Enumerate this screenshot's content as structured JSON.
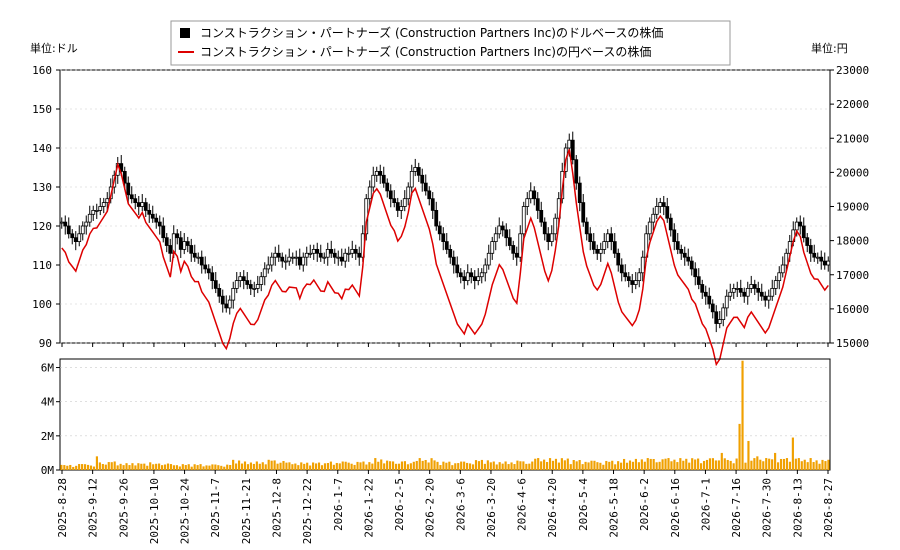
{
  "chart_data": {
    "type": "candlestick-line-bar",
    "legend": {
      "placement": "top-center",
      "entries": [
        {
          "label": "コンストラクション・パートナーズ (Construction Partners Inc)のドルベースの株価",
          "color": "#000000",
          "marker": "square"
        },
        {
          "label": "コンストラクション・パートナーズ (Construction Partners Inc)の円ベースの株価",
          "color": "#dd0000",
          "marker": "line"
        }
      ]
    },
    "left_unit": "単位:ドル",
    "right_unit": "単位:円",
    "price_axis_left": {
      "min": 90,
      "max": 160,
      "ticks": [
        "90",
        "100",
        "110",
        "120",
        "130",
        "140",
        "150",
        "160"
      ]
    },
    "price_axis_right": {
      "min": 15000,
      "max": 23000,
      "ticks": [
        "15000",
        "16000",
        "17000",
        "18000",
        "19000",
        "20000",
        "21000",
        "22000",
        "23000"
      ]
    },
    "volume_axis": {
      "min": 0,
      "max": 6500000,
      "ticks": [
        "0M",
        "2M",
        "4M",
        "6M"
      ],
      "tick_values": [
        0,
        2000000,
        4000000,
        6000000
      ]
    },
    "x_ticks": [
      "2025-8-28",
      "2025-9-12",
      "2025-9-26",
      "2025-10-10",
      "2025-10-24",
      "2025-11-7",
      "2025-11-21",
      "2025-12-8",
      "2025-12-22",
      "2026-1-7",
      "2026-1-22",
      "2026-2-5",
      "2026-2-20",
      "2026-3-6",
      "2026-3-20",
      "2026-4-6",
      "2026-4-20",
      "2026-5-4",
      "2026-5-18",
      "2026-6-2",
      "2026-6-16",
      "2026-7-1",
      "2026-7-16",
      "2026-7-30",
      "2026-8-13",
      "2026-8-27"
    ],
    "series": {
      "usd_close": [
        121,
        120,
        118,
        117,
        116,
        118,
        120,
        121,
        123,
        124,
        124,
        125,
        126,
        127,
        130,
        133,
        136,
        134,
        131,
        128,
        127,
        126,
        125,
        126,
        124,
        123,
        122,
        121,
        120,
        117,
        115,
        113,
        118,
        117,
        114,
        116,
        115,
        113,
        112,
        112,
        110,
        109,
        108,
        106,
        104,
        102,
        100,
        99,
        101,
        104,
        106,
        107,
        106,
        105,
        104,
        104,
        105,
        107,
        109,
        110,
        112,
        113,
        112,
        111,
        111,
        112,
        112,
        112,
        110,
        112,
        113,
        113,
        114,
        113,
        112,
        112,
        114,
        113,
        112,
        112,
        111,
        113,
        113,
        114,
        113,
        112,
        118,
        127,
        130,
        133,
        134,
        133,
        131,
        129,
        127,
        126,
        124,
        125,
        127,
        130,
        134,
        135,
        133,
        131,
        129,
        127,
        124,
        120,
        118,
        116,
        114,
        112,
        110,
        108,
        107,
        106,
        108,
        107,
        106,
        107,
        108,
        110,
        113,
        116,
        118,
        120,
        119,
        117,
        115,
        113,
        112,
        118,
        125,
        127,
        129,
        127,
        124,
        121,
        118,
        116,
        118,
        122,
        127,
        134,
        140,
        142,
        137,
        131,
        126,
        121,
        118,
        116,
        114,
        113,
        114,
        116,
        118,
        116,
        113,
        110,
        108,
        107,
        106,
        105,
        106,
        108,
        112,
        118,
        121,
        123,
        125,
        126,
        125,
        122,
        119,
        116,
        114,
        113,
        112,
        111,
        109,
        107,
        105,
        103,
        102,
        100,
        98,
        95,
        96,
        99,
        102,
        103,
        104,
        104,
        103,
        102,
        104,
        105,
        104,
        103,
        102,
        101,
        102,
        104,
        106,
        108,
        110,
        113,
        116,
        119,
        121,
        120,
        117,
        115,
        113,
        112,
        112,
        111,
        110,
        111
      ]
    },
    "volume_points": [
      [
        0,
        300000
      ],
      [
        20,
        350000
      ],
      [
        40,
        800000
      ],
      [
        60,
        500000
      ],
      [
        80,
        400000
      ],
      [
        100,
        450000
      ],
      [
        120,
        380000
      ],
      [
        140,
        350000
      ],
      [
        160,
        400000
      ],
      [
        180,
        330000
      ],
      [
        190,
        1500000
      ],
      [
        200,
        600000
      ],
      [
        210,
        500000
      ],
      [
        230,
        700000
      ],
      [
        250,
        600000
      ],
      [
        270,
        450000
      ],
      [
        290,
        500000
      ],
      [
        310,
        550000
      ],
      [
        330,
        500000
      ],
      [
        350,
        1600000
      ],
      [
        360,
        800000
      ],
      [
        380,
        550000
      ],
      [
        400,
        700000
      ],
      [
        420,
        900000
      ],
      [
        440,
        500000
      ],
      [
        460,
        600000
      ],
      [
        480,
        650000
      ],
      [
        490,
        500000
      ],
      [
        510,
        550000
      ],
      [
        530,
        900000
      ],
      [
        550,
        1600000
      ],
      [
        570,
        800000
      ],
      [
        590,
        600000
      ],
      [
        610,
        550000
      ],
      [
        630,
        650000
      ],
      [
        650,
        700000
      ],
      [
        670,
        800000
      ],
      [
        690,
        900000
      ],
      [
        710,
        1700000
      ],
      [
        730,
        700000
      ],
      [
        740,
        1000000
      ],
      [
        760,
        2700000
      ],
      [
        764,
        6400000
      ],
      [
        770,
        1700000
      ],
      [
        780,
        800000
      ],
      [
        800,
        1000000
      ],
      [
        820,
        1900000
      ],
      [
        840,
        700000
      ],
      [
        860,
        600000
      ]
    ]
  }
}
